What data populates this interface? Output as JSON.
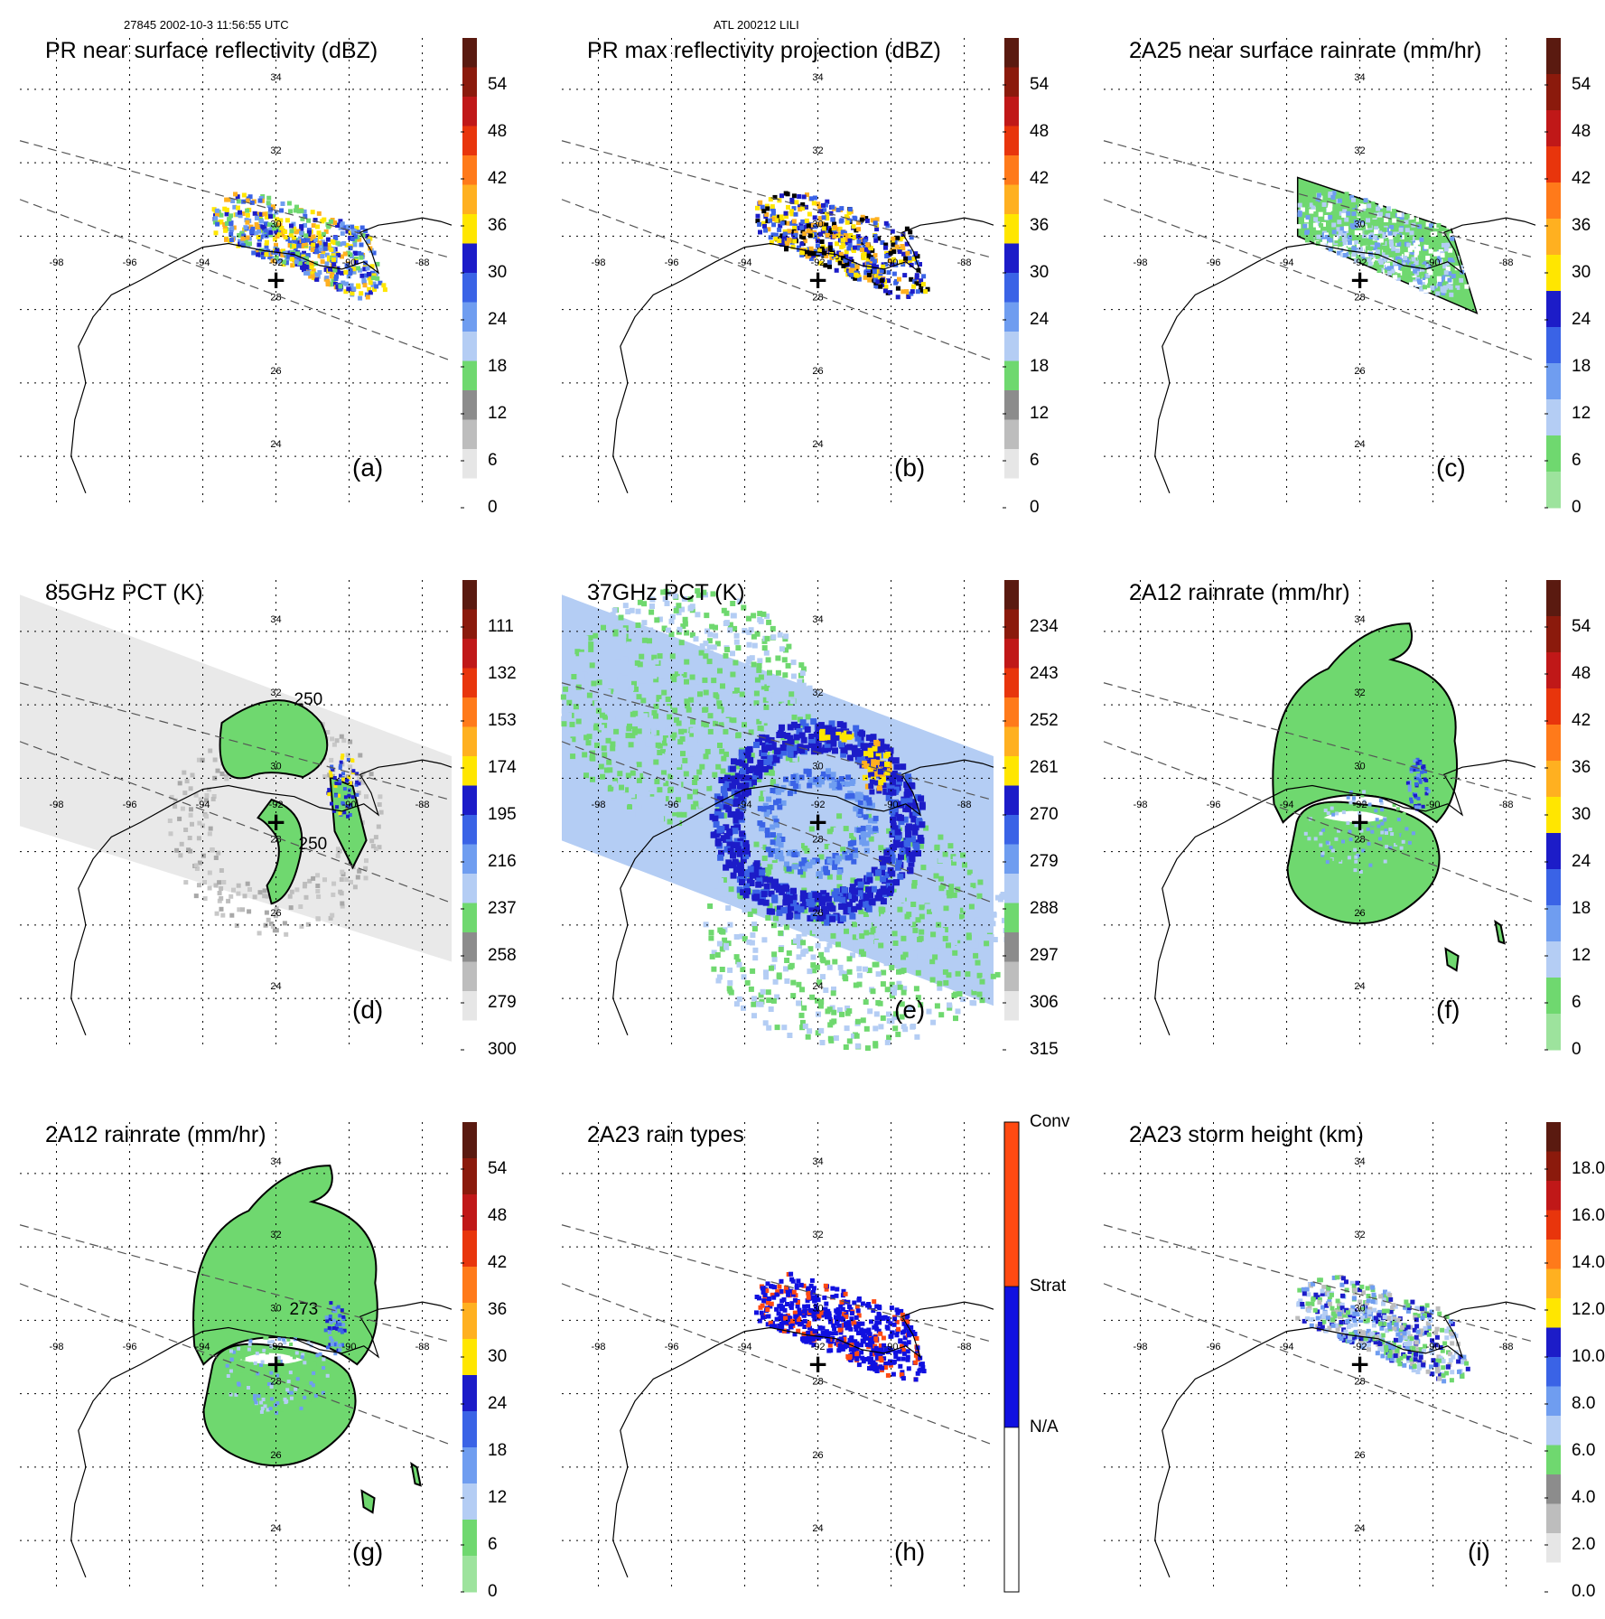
{
  "header": {
    "left": "27845 2002-10-3 11:56:55 UTC",
    "center": "ATL 200212 LILI"
  },
  "map": {
    "lon_labels": [
      "-98",
      "-96",
      "-94",
      "-92",
      "-90",
      "-88"
    ],
    "lat_labels": [
      "34",
      "32",
      "30",
      "28",
      "26",
      "24"
    ],
    "storm_center_marker": "+"
  },
  "panels": [
    {
      "id": "a",
      "title": "PR near surface reflectivity (dBZ)",
      "label": "(a)",
      "kind": "swath-pr",
      "colorbar": {
        "ticks": [
          "54",
          "48",
          "42",
          "36",
          "30",
          "24",
          "18",
          "12",
          "6",
          "0"
        ],
        "colors": [
          "#5a1a10",
          "#8b1a0c",
          "#c01818",
          "#e8350c",
          "#ff7a1a",
          "#ffb020",
          "#ffe600",
          "#1c1cc8",
          "#3a63e6",
          "#6f9df0",
          "#b4cdf4",
          "#6fd86f",
          "#8c8c8c",
          "#bdbdbd",
          "#e6e6e6",
          "#ffffff"
        ]
      }
    },
    {
      "id": "b",
      "title": "PR max reflectivity projection (dBZ)",
      "label": "(b)",
      "kind": "swath-pr-dense",
      "colorbar": {
        "ticks": [
          "54",
          "48",
          "42",
          "36",
          "30",
          "24",
          "18",
          "12",
          "6",
          "0"
        ],
        "colors": [
          "#5a1a10",
          "#8b1a0c",
          "#c01818",
          "#e8350c",
          "#ff7a1a",
          "#ffb020",
          "#ffe600",
          "#1c1cc8",
          "#3a63e6",
          "#6f9df0",
          "#b4cdf4",
          "#6fd86f",
          "#8c8c8c",
          "#bdbdbd",
          "#e6e6e6",
          "#ffffff"
        ]
      }
    },
    {
      "id": "c",
      "title": "2A25 near surface rainrate (mm/hr)",
      "label": "(c)",
      "kind": "swath-rain",
      "colorbar": {
        "ticks": [
          "54",
          "48",
          "42",
          "36",
          "30",
          "24",
          "18",
          "12",
          "6",
          "0"
        ],
        "colors": [
          "#5a1a10",
          "#8b1a0c",
          "#c01818",
          "#e8350c",
          "#ff7a1a",
          "#ffb020",
          "#ffe600",
          "#1c1cc8",
          "#3a63e6",
          "#6f9df0",
          "#b4cdf4",
          "#6fd86f",
          "#9de39d"
        ]
      }
    },
    {
      "id": "d",
      "title": "85GHz PCT (K)",
      "label": "(d)",
      "kind": "tmi-gray",
      "contour_labels": [
        "250",
        "250"
      ],
      "colorbar": {
        "ticks": [
          "111",
          "132",
          "153",
          "174",
          "195",
          "216",
          "237",
          "258",
          "279",
          "300"
        ],
        "colors": [
          "#5a1a10",
          "#8b1a0c",
          "#c01818",
          "#e8350c",
          "#ff7a1a",
          "#ffb020",
          "#ffe600",
          "#1c1cc8",
          "#3a63e6",
          "#6f9df0",
          "#b4cdf4",
          "#6fd86f",
          "#8c8c8c",
          "#bdbdbd",
          "#e6e6e6",
          "#ffffff"
        ]
      }
    },
    {
      "id": "e",
      "title": "37GHz PCT (K)",
      "label": "(e)",
      "kind": "tmi-blue",
      "colorbar": {
        "ticks": [
          "234",
          "243",
          "252",
          "261",
          "270",
          "279",
          "288",
          "297",
          "306",
          "315"
        ],
        "colors": [
          "#5a1a10",
          "#8b1a0c",
          "#c01818",
          "#e8350c",
          "#ff7a1a",
          "#ffb020",
          "#ffe600",
          "#1c1cc8",
          "#3a63e6",
          "#6f9df0",
          "#b4cdf4",
          "#6fd86f",
          "#8c8c8c",
          "#bdbdbd",
          "#e6e6e6",
          "#ffffff"
        ]
      }
    },
    {
      "id": "f",
      "title": "2A12 rainrate (mm/hr)",
      "label": "(f)",
      "kind": "tmi-rain",
      "colorbar": {
        "ticks": [
          "54",
          "48",
          "42",
          "36",
          "30",
          "24",
          "18",
          "12",
          "6",
          "0"
        ],
        "colors": [
          "#5a1a10",
          "#8b1a0c",
          "#c01818",
          "#e8350c",
          "#ff7a1a",
          "#ffb020",
          "#ffe600",
          "#1c1cc8",
          "#3a63e6",
          "#6f9df0",
          "#b4cdf4",
          "#6fd86f",
          "#9de39d"
        ]
      }
    },
    {
      "id": "g",
      "title": "2A12 rainrate (mm/hr)",
      "label": "(g)",
      "kind": "tmi-rain-2",
      "contour_labels": [
        "273"
      ],
      "colorbar": {
        "ticks": [
          "54",
          "48",
          "42",
          "36",
          "30",
          "24",
          "18",
          "12",
          "6",
          "0"
        ],
        "colors": [
          "#5a1a10",
          "#8b1a0c",
          "#c01818",
          "#e8350c",
          "#ff7a1a",
          "#ffb020",
          "#ffe600",
          "#1c1cc8",
          "#3a63e6",
          "#6f9df0",
          "#b4cdf4",
          "#6fd86f",
          "#9de39d"
        ]
      }
    },
    {
      "id": "h",
      "title": "2A23 rain types",
      "label": "(h)",
      "kind": "swath-types",
      "colorbar": {
        "ticks": [
          "Conv",
          "Strat",
          "N/A"
        ],
        "categorical": true,
        "colors": [
          "#ff4a12",
          "#1010e0",
          "#ffffff"
        ]
      }
    },
    {
      "id": "i",
      "title": "2A23 storm height (km)",
      "label": "(i)",
      "kind": "swath-height",
      "colorbar": {
        "ticks": [
          "18.0",
          "16.0",
          "14.0",
          "12.0",
          "10.0",
          "8.0",
          "6.0",
          "4.0",
          "2.0",
          "0.0"
        ],
        "colors": [
          "#5a1a10",
          "#8b1a0c",
          "#c01818",
          "#e8350c",
          "#ff7a1a",
          "#ffb020",
          "#ffe600",
          "#1c1cc8",
          "#3a63e6",
          "#6f9df0",
          "#b4cdf4",
          "#6fd86f",
          "#8c8c8c",
          "#bdbdbd",
          "#e6e6e6",
          "#ffffff"
        ]
      }
    }
  ]
}
